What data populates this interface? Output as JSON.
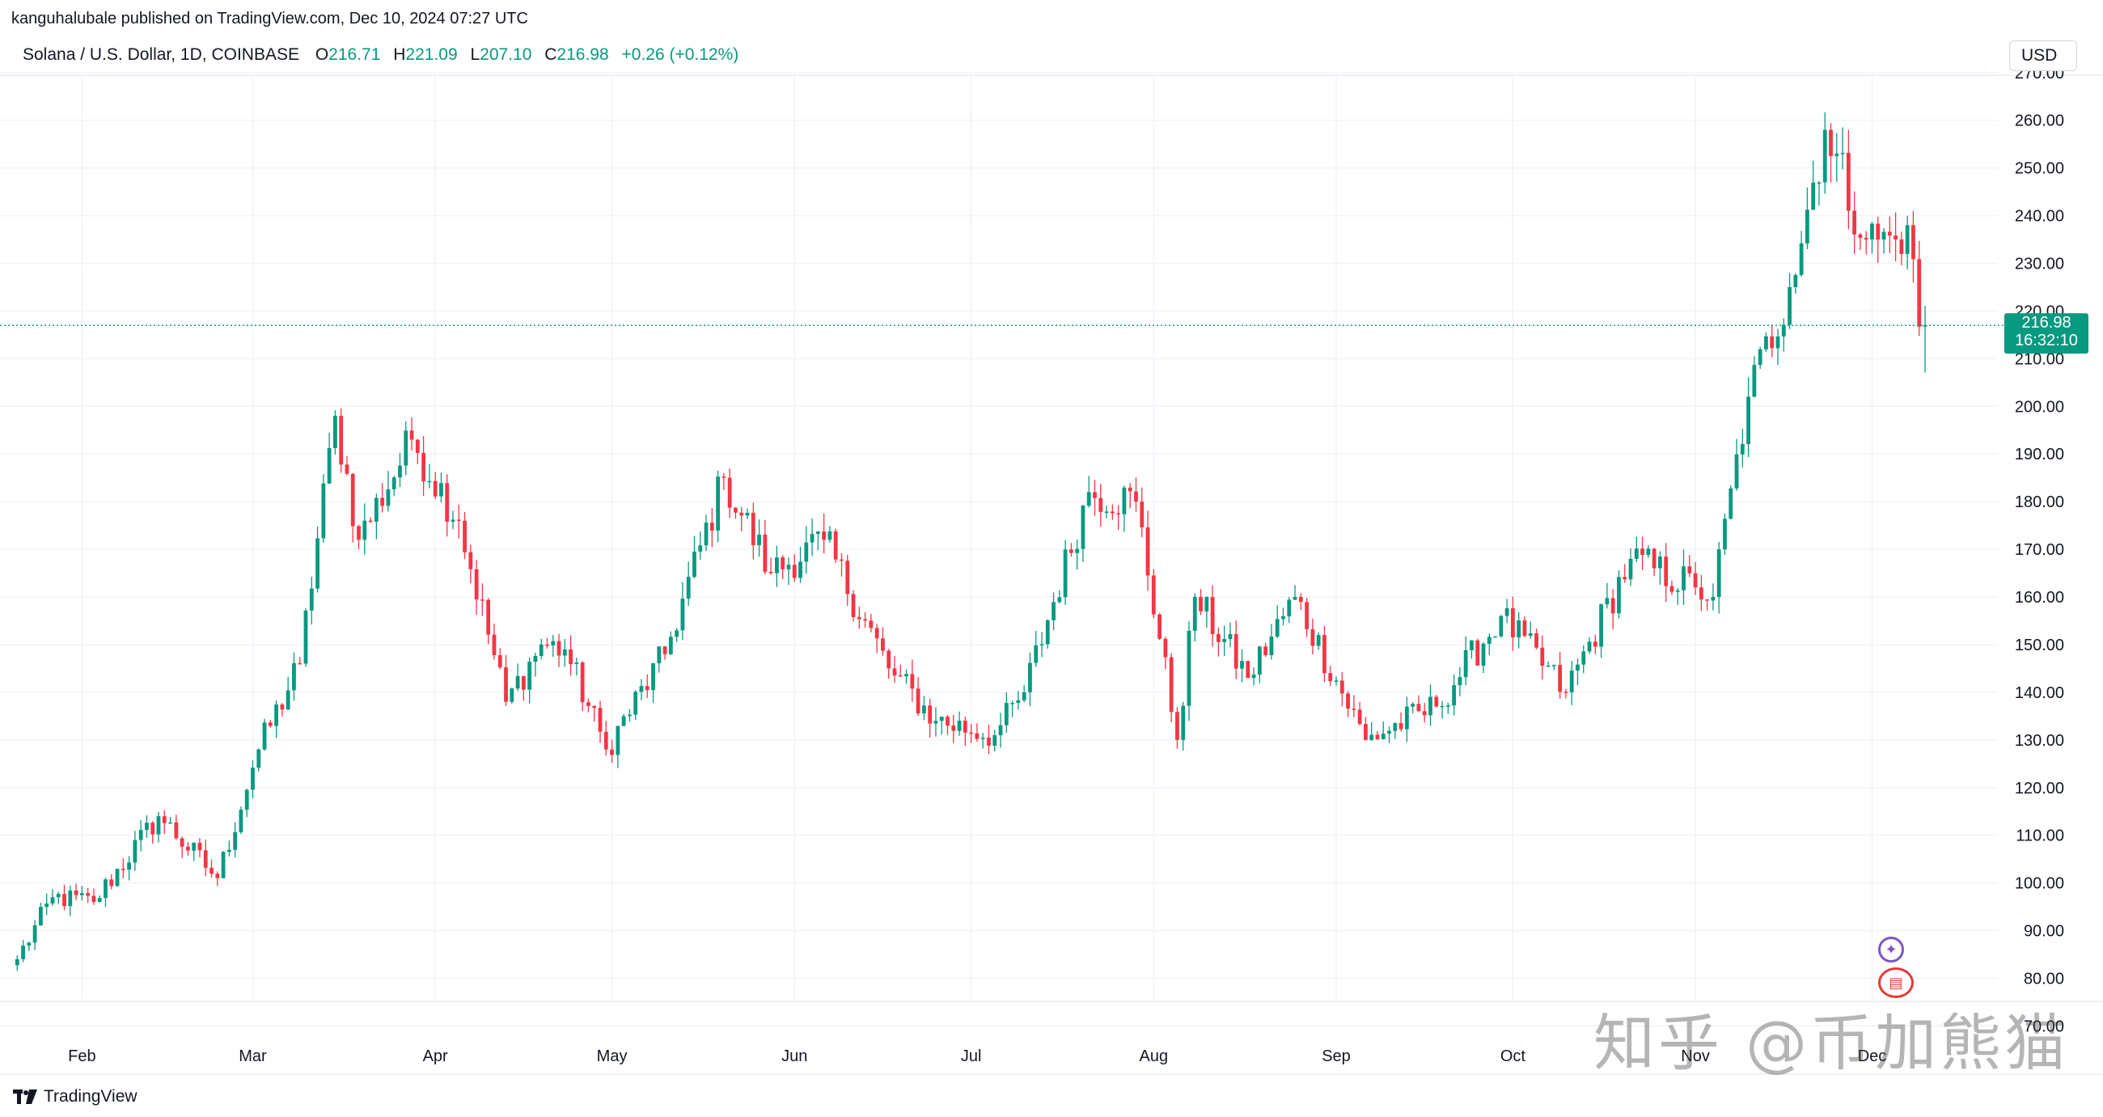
{
  "header": {
    "publisher": "kanguhalubale published on TradingView.com, Dec 10, 2024 07:27 UTC"
  },
  "legend": {
    "symbol": "Solana / U.S. Dollar, 1D, COINBASE",
    "o_label": "O",
    "o_value": "216.71",
    "h_label": "H",
    "h_value": "221.09",
    "l_label": "L",
    "l_value": "207.10",
    "c_label": "C",
    "c_value": "216.98",
    "change": "+0.26 (+0.12%)"
  },
  "currency_button": "USD",
  "brand": "TradingView",
  "watermark": "知乎 @币加熊猫",
  "icons": {
    "event_star": "star-icon",
    "event_flag": "us-flag-icon",
    "brand_logo": "tradingview-logo-icon"
  },
  "colors": {
    "up": "#089981",
    "down": "#f23645",
    "grid": "#f0f3fa",
    "text": "#131722",
    "price_line": "#089981"
  },
  "chart_data": {
    "type": "candlestick",
    "x_labels": [
      "Feb",
      "Mar",
      "Apr",
      "May",
      "Jun",
      "Jul",
      "Aug",
      "Sep",
      "Oct",
      "Nov",
      "Dec"
    ],
    "y_ticks": [
      "70.00",
      "80.00",
      "90.00",
      "100.00",
      "110.00",
      "120.00",
      "130.00",
      "140.00",
      "150.00",
      "160.00",
      "170.00",
      "180.00",
      "190.00",
      "200.00",
      "210.00",
      "220.00",
      "230.00",
      "240.00",
      "250.00",
      "260.00",
      "270.00"
    ],
    "ylim": [
      70,
      271
    ],
    "last_price": "216.98",
    "countdown": "16:32:10",
    "grid": true,
    "keypoints": [
      {
        "d": "2024-01-21",
        "v": 84
      },
      {
        "d": "2024-01-27",
        "v": 97
      },
      {
        "d": "2024-02-03",
        "v": 96
      },
      {
        "d": "2024-02-14",
        "v": 114
      },
      {
        "d": "2024-02-24",
        "v": 101
      },
      {
        "d": "2024-03-02",
        "v": 128
      },
      {
        "d": "2024-03-09",
        "v": 146
      },
      {
        "d": "2024-03-15",
        "v": 198
      },
      {
        "d": "2024-03-19",
        "v": 172
      },
      {
        "d": "2024-03-28",
        "v": 193
      },
      {
        "d": "2024-04-05",
        "v": 176
      },
      {
        "d": "2024-04-13",
        "v": 138
      },
      {
        "d": "2024-04-19",
        "v": 150
      },
      {
        "d": "2024-04-23",
        "v": 149
      },
      {
        "d": "2024-04-30",
        "v": 128
      },
      {
        "d": "2024-05-10",
        "v": 148
      },
      {
        "d": "2024-05-20",
        "v": 185
      },
      {
        "d": "2024-05-28",
        "v": 165
      },
      {
        "d": "2024-06-06",
        "v": 172
      },
      {
        "d": "2024-06-17",
        "v": 145
      },
      {
        "d": "2024-06-25",
        "v": 134
      },
      {
        "d": "2024-07-05",
        "v": 131
      },
      {
        "d": "2024-07-10",
        "v": 140
      },
      {
        "d": "2024-07-21",
        "v": 182
      },
      {
        "d": "2024-07-29",
        "v": 180
      },
      {
        "d": "2024-08-05",
        "v": 130
      },
      {
        "d": "2024-08-08",
        "v": 160
      },
      {
        "d": "2024-08-17",
        "v": 143
      },
      {
        "d": "2024-08-25",
        "v": 160
      },
      {
        "d": "2024-09-06",
        "v": 130
      },
      {
        "d": "2024-09-18",
        "v": 137
      },
      {
        "d": "2024-09-29",
        "v": 156
      },
      {
        "d": "2024-10-10",
        "v": 140
      },
      {
        "d": "2024-10-21",
        "v": 168
      },
      {
        "d": "2024-11-01",
        "v": 162
      },
      {
        "d": "2024-11-04",
        "v": 160
      },
      {
        "d": "2024-11-10",
        "v": 202
      },
      {
        "d": "2024-11-17",
        "v": 225
      },
      {
        "d": "2024-11-23",
        "v": 258
      },
      {
        "d": "2024-11-30",
        "v": 235
      },
      {
        "d": "2024-12-05",
        "v": 235
      },
      {
        "d": "2024-12-07",
        "v": 238
      },
      {
        "d": "2024-12-09",
        "v": 216.71
      }
    ],
    "last_candle": {
      "date": "2024-12-10",
      "open": 216.71,
      "high": 221.09,
      "low": 207.1,
      "close": 216.98
    }
  }
}
